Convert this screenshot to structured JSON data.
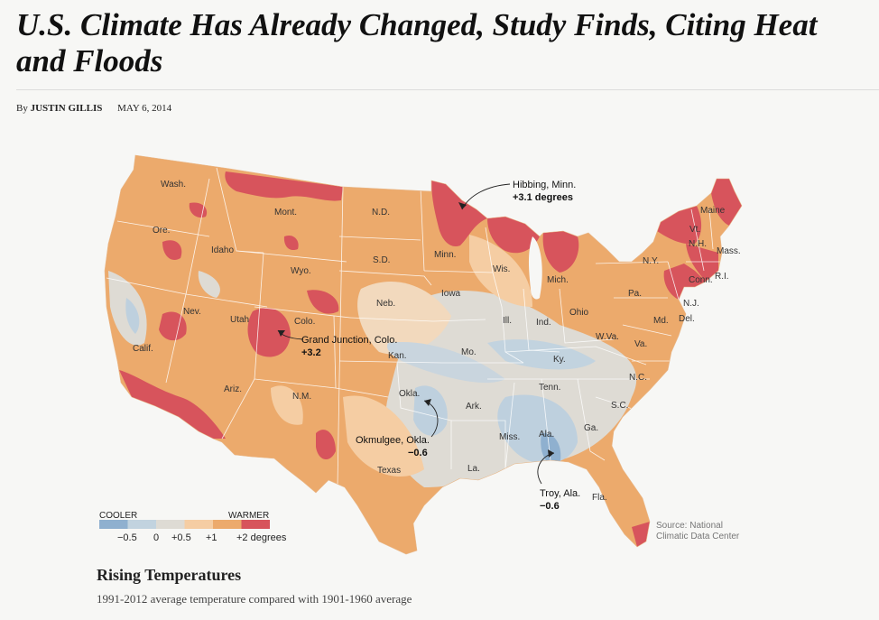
{
  "article": {
    "headline": "U.S. Climate Has Already Changed, Study Finds, Citing Heat and Floods",
    "byline_prefix": "By",
    "author": "JUSTIN GILLIS",
    "date": "MAY 6, 2014"
  },
  "map": {
    "title": "Rising Temperatures",
    "subtitle": "1991-2012 average temperature compared with 1901-1960 average",
    "source": "Source: National Climatic Data Center",
    "legend": {
      "low_label": "COOLER",
      "high_label": "WARMER",
      "ticks": [
        "−0.5",
        "0",
        "+0.5",
        "+1",
        "+2 degrees"
      ],
      "colors": [
        "#8fb0cf",
        "#c2d3df",
        "#dedbd4",
        "#f5cda3",
        "#ecaa6c",
        "#d7545c"
      ]
    },
    "state_labels": [
      "Wash.",
      "Ore.",
      "Calif.",
      "Idaho",
      "Nev.",
      "Mont.",
      "Wyo.",
      "Utah",
      "Colo.",
      "Ariz.",
      "N.M.",
      "N.D.",
      "S.D.",
      "Neb.",
      "Kan.",
      "Okla.",
      "Texas",
      "Minn.",
      "Iowa",
      "Mo.",
      "Ark.",
      "La.",
      "Wis.",
      "Ill.",
      "Mich.",
      "Ind.",
      "Ohio",
      "Ky.",
      "Tenn.",
      "Miss.",
      "Ala.",
      "Ga.",
      "Fla.",
      "S.C.",
      "N.C.",
      "Va.",
      "W.Va.",
      "Pa.",
      "N.Y.",
      "Md.",
      "Del.",
      "N.J.",
      "Conn.",
      "R.I.",
      "Mass.",
      "Vt.",
      "N.H.",
      "Maine"
    ],
    "callouts": [
      {
        "place": "Hibbing, Minn.",
        "value": "+3.1 degrees"
      },
      {
        "place": "Grand Junction, Colo.",
        "value": "+3.2"
      },
      {
        "place": "Okmulgee, Okla.",
        "value": "−0.6"
      },
      {
        "place": "Troy, Ala.",
        "value": "−0.6"
      }
    ]
  }
}
